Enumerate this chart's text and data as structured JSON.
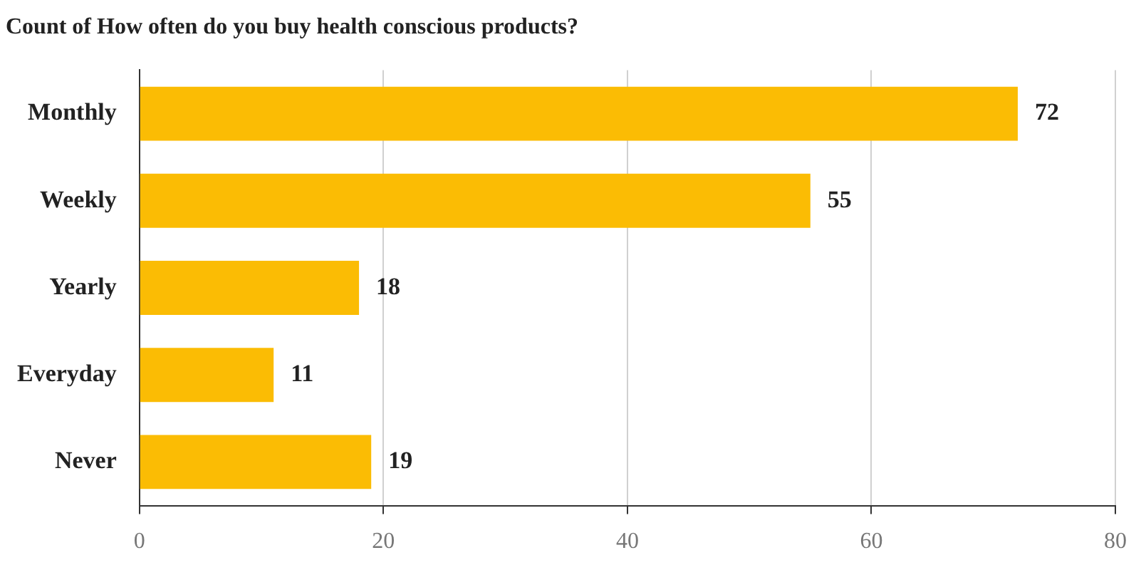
{
  "chart_data": {
    "type": "bar",
    "orientation": "horizontal",
    "title": "Count of How often do you buy health conscious products?",
    "categories": [
      "Monthly",
      "Weekly",
      "Yearly",
      "Everyday",
      "Never"
    ],
    "values": [
      72,
      55,
      18,
      11,
      19
    ],
    "color": "#fbbc04",
    "xlim": [
      0,
      80
    ],
    "xticks": [
      0,
      20,
      40,
      60,
      80
    ],
    "grid": "x",
    "data_labels": true
  }
}
